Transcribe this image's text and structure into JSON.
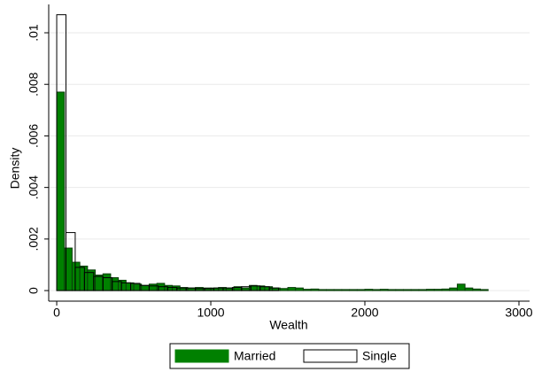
{
  "chart_data": {
    "type": "histogram",
    "xlabel": "Wealth",
    "ylabel": "Density",
    "xlim": [
      -52,
      3069
    ],
    "ylim": [
      -0.00041,
      0.0111
    ],
    "xticks": [
      0,
      1000,
      2000,
      3000
    ],
    "yticks": [
      {
        "value": 0,
        "label": "0"
      },
      {
        "value": 0.002,
        "label": ".002"
      },
      {
        "value": 0.004,
        "label": ".004"
      },
      {
        "value": 0.006,
        "label": ".006"
      },
      {
        "value": 0.008,
        "label": ".008"
      },
      {
        "value": 0.01,
        "label": ".01"
      }
    ],
    "grid": true,
    "legend": "bottom",
    "series": [
      {
        "name": "Married",
        "color": "#008000",
        "fill": true,
        "bins": [
          0,
          50,
          100,
          150,
          200,
          250,
          300,
          350,
          400,
          450,
          500,
          550,
          600,
          650,
          700,
          750,
          800,
          850,
          900,
          950,
          1000,
          1050,
          1100,
          1150,
          1200,
          1250,
          1300,
          1350,
          1400,
          1450,
          1500,
          1550,
          1600,
          1650,
          1700,
          1750,
          1800,
          1850,
          1900,
          1950,
          2000,
          2050,
          2100,
          2150,
          2200,
          2250,
          2300,
          2350,
          2400,
          2450,
          2500,
          2550,
          2600,
          2650,
          2700,
          2750,
          2800
        ],
        "values": [
          0.0077,
          0.00165,
          0.0011,
          0.00095,
          0.0008,
          0.0006,
          0.00065,
          0.0005,
          0.0004,
          0.0003,
          0.00025,
          0.0002,
          0.00025,
          0.00028,
          0.0002,
          0.00018,
          0.00012,
          0.0001,
          0.00012,
          0.0001,
          0.0001,
          0.00012,
          0.0001,
          0.00015,
          0.0001,
          0.0002,
          0.00018,
          0.00015,
          0.0001,
          8e-05,
          0.00012,
          0.0001,
          5e-05,
          6e-05,
          4e-05,
          4e-05,
          4e-05,
          4e-05,
          4e-05,
          4e-05,
          5e-05,
          4e-05,
          5e-05,
          4e-05,
          4e-05,
          4e-05,
          4e-05,
          4e-05,
          5e-05,
          5e-05,
          6e-05,
          0.0001,
          0.00025,
          0.0001,
          6e-05,
          4e-05
        ]
      },
      {
        "name": "Single",
        "color": "#000000",
        "fill": false,
        "bins": [
          0,
          60,
          120,
          180,
          240,
          300,
          360,
          420,
          480,
          540,
          600,
          660,
          720,
          780,
          840,
          900,
          960,
          1020,
          1080,
          1140,
          1200,
          1260,
          1320,
          1380,
          1440
        ],
        "values": [
          0.0107,
          0.00225,
          0.0009,
          0.0007,
          0.00055,
          0.0005,
          0.00035,
          0.0003,
          0.00028,
          0.0002,
          0.00018,
          0.00015,
          0.00012,
          0.0001,
          0.0001,
          8e-05,
          8e-05,
          0.0001,
          0.0001,
          0.00012,
          0.00015,
          0.00018,
          0.00015,
          0.0001
        ]
      }
    ]
  }
}
